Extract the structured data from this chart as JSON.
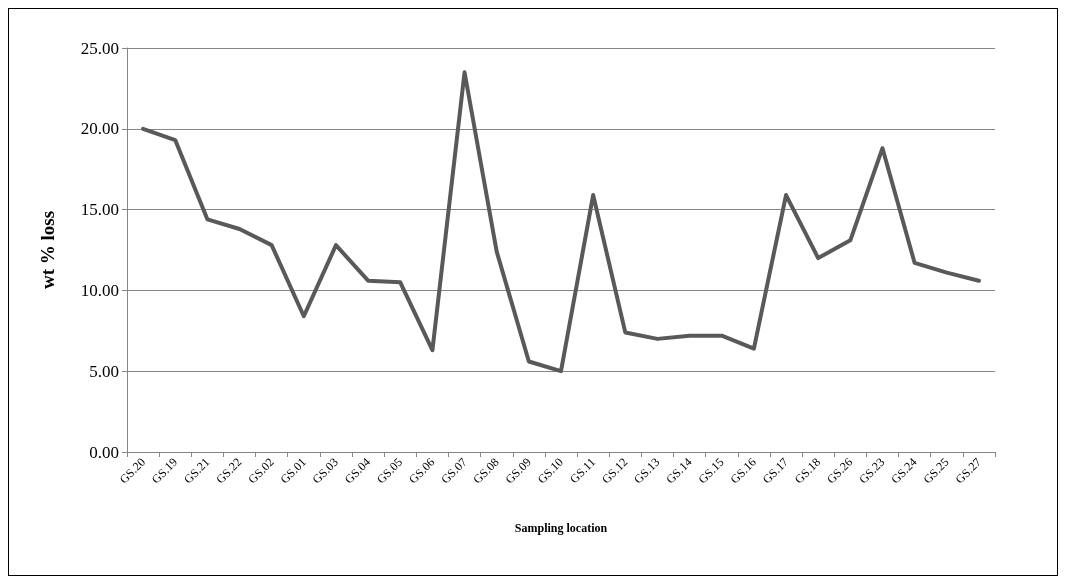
{
  "chart_data": {
    "type": "line",
    "xlabel": "Sampling location",
    "ylabel": "wt % loss",
    "categories": [
      "GS.20",
      "GS.19",
      "GS.21",
      "GS.22",
      "GS.02",
      "GS.01",
      "GS.03",
      "GS.04",
      "GS.05",
      "GS.06",
      "GS.07",
      "GS.08",
      "GS.09",
      "GS.10",
      "GS.11",
      "GS.12",
      "GS.13",
      "GS.14",
      "GS.15",
      "GS.16",
      "GS.17",
      "GS.18",
      "GS.26",
      "GS.23",
      "GS.24",
      "GS.25",
      "GS.27"
    ],
    "series": [
      {
        "color": "#595959",
        "values": [
          20.0,
          19.3,
          14.4,
          13.8,
          12.8,
          8.4,
          12.8,
          10.6,
          10.5,
          6.3,
          23.5,
          12.4,
          5.6,
          5.0,
          15.9,
          7.4,
          7.0,
          7.2,
          7.2,
          6.4,
          15.9,
          12.0,
          13.1,
          18.8,
          11.7,
          11.1,
          10.6
        ]
      }
    ],
    "ylim": [
      0,
      25
    ],
    "yticks": [
      {
        "value": 0,
        "label": "0.00"
      },
      {
        "value": 5,
        "label": "5.00"
      },
      {
        "value": 10,
        "label": "10.00"
      },
      {
        "value": 15,
        "label": "15.00"
      },
      {
        "value": 20,
        "label": "20.00"
      },
      {
        "value": 25,
        "label": "25.00"
      }
    ],
    "grid": "y",
    "marker": "none",
    "line_style": "solid"
  }
}
